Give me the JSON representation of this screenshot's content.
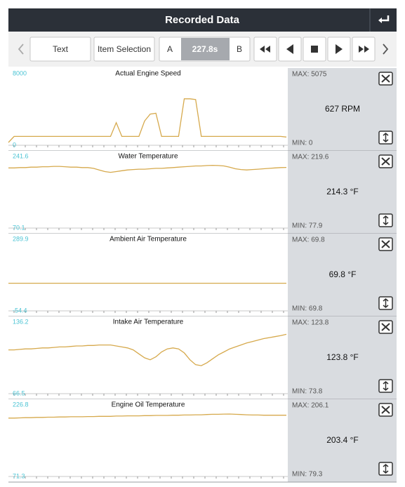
{
  "header": {
    "title": "Recorded Data"
  },
  "toolbar": {
    "text_button": "Text",
    "item_selection_button": "Item Selection",
    "marker_a": "A",
    "time": "227.8s",
    "marker_b": "B"
  },
  "chart_data": [
    {
      "type": "line",
      "title": "Actual Engine Speed",
      "ylim": [
        0,
        8000
      ],
      "color": "#d6a94c",
      "values": [
        0,
        700,
        700,
        700,
        700,
        700,
        700,
        700,
        700,
        700,
        700,
        700,
        700,
        700,
        700,
        700,
        700,
        700,
        700,
        2300,
        700,
        700,
        700,
        700,
        2500,
        3300,
        3400,
        700,
        700,
        700,
        700,
        5075,
        5075,
        5000,
        700,
        700,
        700,
        700,
        700,
        700,
        700,
        700,
        700,
        700,
        700,
        700,
        700,
        700,
        700,
        627
      ],
      "max": "MAX: 5075",
      "current": "627 RPM",
      "min": "MIN: 0"
    },
    {
      "type": "line",
      "title": "Water Temperature",
      "ylim": [
        70.1,
        241.6
      ],
      "color": "#d6a94c",
      "values": [
        213,
        213,
        214,
        214,
        215,
        215,
        216,
        216,
        217,
        217,
        216,
        215,
        215,
        214,
        214,
        212,
        208,
        204,
        202,
        204,
        206,
        208,
        209,
        210,
        210,
        211,
        212,
        212,
        213,
        214,
        215,
        216,
        217,
        218,
        218,
        219,
        219.6,
        219,
        218,
        215,
        211,
        209,
        208,
        209,
        210,
        211,
        212,
        213,
        214,
        214.3
      ],
      "max": "MAX: 219.6",
      "current": "214.3 °F",
      "min": "MIN: 77.9"
    },
    {
      "type": "line",
      "title": "Ambient Air Temperature",
      "ylim": [
        -54.4,
        289.9
      ],
      "color": "#d6a94c",
      "values": [
        69.8,
        69.8,
        69.8,
        69.8,
        69.8,
        69.8,
        69.8,
        69.8,
        69.8,
        69.8
      ],
      "max": "MAX: 69.8",
      "current": "69.8 °F",
      "min": "MIN: 69.8"
    },
    {
      "type": "line",
      "title": "Intake Air Temperature",
      "ylim": [
        66.5,
        136.2
      ],
      "color": "#d6a94c",
      "values": [
        108,
        108,
        108.5,
        109,
        109,
        109.5,
        110,
        110,
        110.5,
        111,
        111,
        111.5,
        112,
        112,
        112.5,
        112.5,
        113,
        113,
        113,
        112,
        111,
        110,
        108,
        104,
        100,
        98,
        101,
        106,
        109,
        110,
        109,
        105,
        98,
        93,
        92,
        95,
        99,
        103,
        106,
        109,
        111,
        113,
        115,
        116.5,
        118,
        119.5,
        120.5,
        121.5,
        122.5,
        123.8
      ],
      "max": "MAX: 123.8",
      "current": "123.8 °F",
      "min": "MIN: 73.8"
    },
    {
      "type": "line",
      "title": "Engine Oil Temperature",
      "ylim": [
        71.3,
        226.8
      ],
      "color": "#d6a94c",
      "values": [
        197,
        197,
        197.5,
        198,
        198,
        198.5,
        198.5,
        199,
        199,
        199.5,
        199.5,
        200,
        200,
        200,
        200.5,
        200.5,
        201,
        201,
        201,
        201.5,
        201.5,
        202,
        202,
        202,
        202.5,
        202.5,
        203,
        203,
        203,
        203.5,
        203.5,
        204,
        204,
        204.5,
        204.5,
        205,
        205.5,
        205.5,
        206,
        206.1,
        205.5,
        205,
        204.5,
        204,
        204,
        203.5,
        203.5,
        203.5,
        203.4,
        203.4
      ],
      "max": "MAX: 206.1",
      "current": "203.4 °F",
      "min": "MIN: 79.3"
    }
  ]
}
